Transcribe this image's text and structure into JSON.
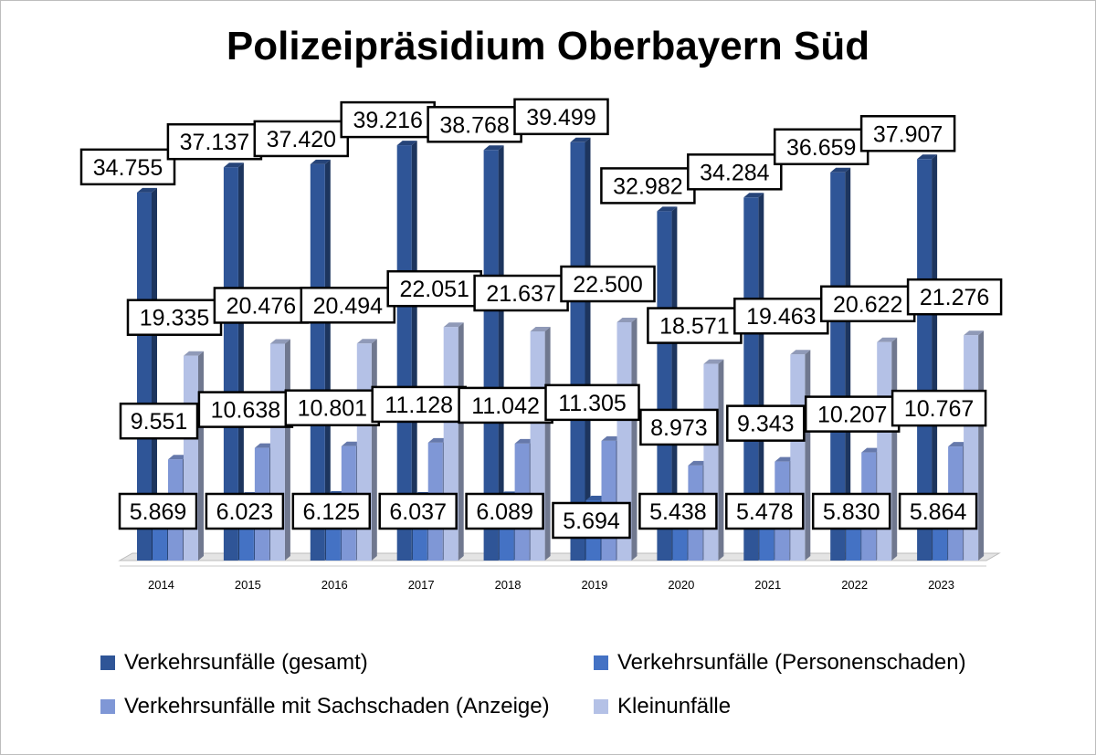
{
  "chart_data": {
    "type": "bar",
    "title": "Polizeipräsidium Oberbayern Süd",
    "categories": [
      "2014",
      "2015",
      "2016",
      "2017",
      "2018",
      "2019",
      "2020",
      "2021",
      "2022",
      "2023"
    ],
    "series": [
      {
        "name": "Verkehrsunfälle (gesamt)",
        "color": "#2F5597",
        "values": [
          34755,
          37137,
          37420,
          39216,
          38768,
          39499,
          32982,
          34284,
          36659,
          37907
        ],
        "labels": [
          "34.755",
          "37.137",
          "37.420",
          "39.216",
          "38.768",
          "39.499",
          "32.982",
          "34.284",
          "36.659",
          "37.907"
        ]
      },
      {
        "name": "Verkehrsunfälle (Personenschaden)",
        "color": "#4472C4",
        "values": [
          5869,
          6023,
          6125,
          6037,
          6089,
          5694,
          5438,
          5478,
          5830,
          5864
        ],
        "labels": [
          "5.869",
          "6.023",
          "6.125",
          "6.037",
          "6.089",
          "5.694",
          "5.438",
          "5.478",
          "5.830",
          "5.864"
        ]
      },
      {
        "name": "Verkehrsunfälle mit Sachschaden (Anzeige)",
        "color": "#7F97D6",
        "values": [
          9551,
          10638,
          10801,
          11128,
          11042,
          11305,
          8973,
          9343,
          10207,
          10767
        ],
        "labels": [
          "9.551",
          "10.638",
          "10.801",
          "11.128",
          "11.042",
          "11.305",
          "8.973",
          "9.343",
          "10.207",
          "10.767"
        ]
      },
      {
        "name": "Kleinunfälle",
        "color": "#B4C1E6",
        "values": [
          19335,
          20476,
          20494,
          22051,
          21637,
          22500,
          18571,
          19463,
          20622,
          21276
        ],
        "labels": [
          "19.335",
          "20.476",
          "20.494",
          "22.051",
          "21.637",
          "22.500",
          "18.571",
          "19.463",
          "20.622",
          "21.276"
        ]
      }
    ],
    "ylim": [
      0,
      40000
    ],
    "grid": false,
    "legend_position": "bottom",
    "xlabel": "",
    "ylabel": ""
  }
}
